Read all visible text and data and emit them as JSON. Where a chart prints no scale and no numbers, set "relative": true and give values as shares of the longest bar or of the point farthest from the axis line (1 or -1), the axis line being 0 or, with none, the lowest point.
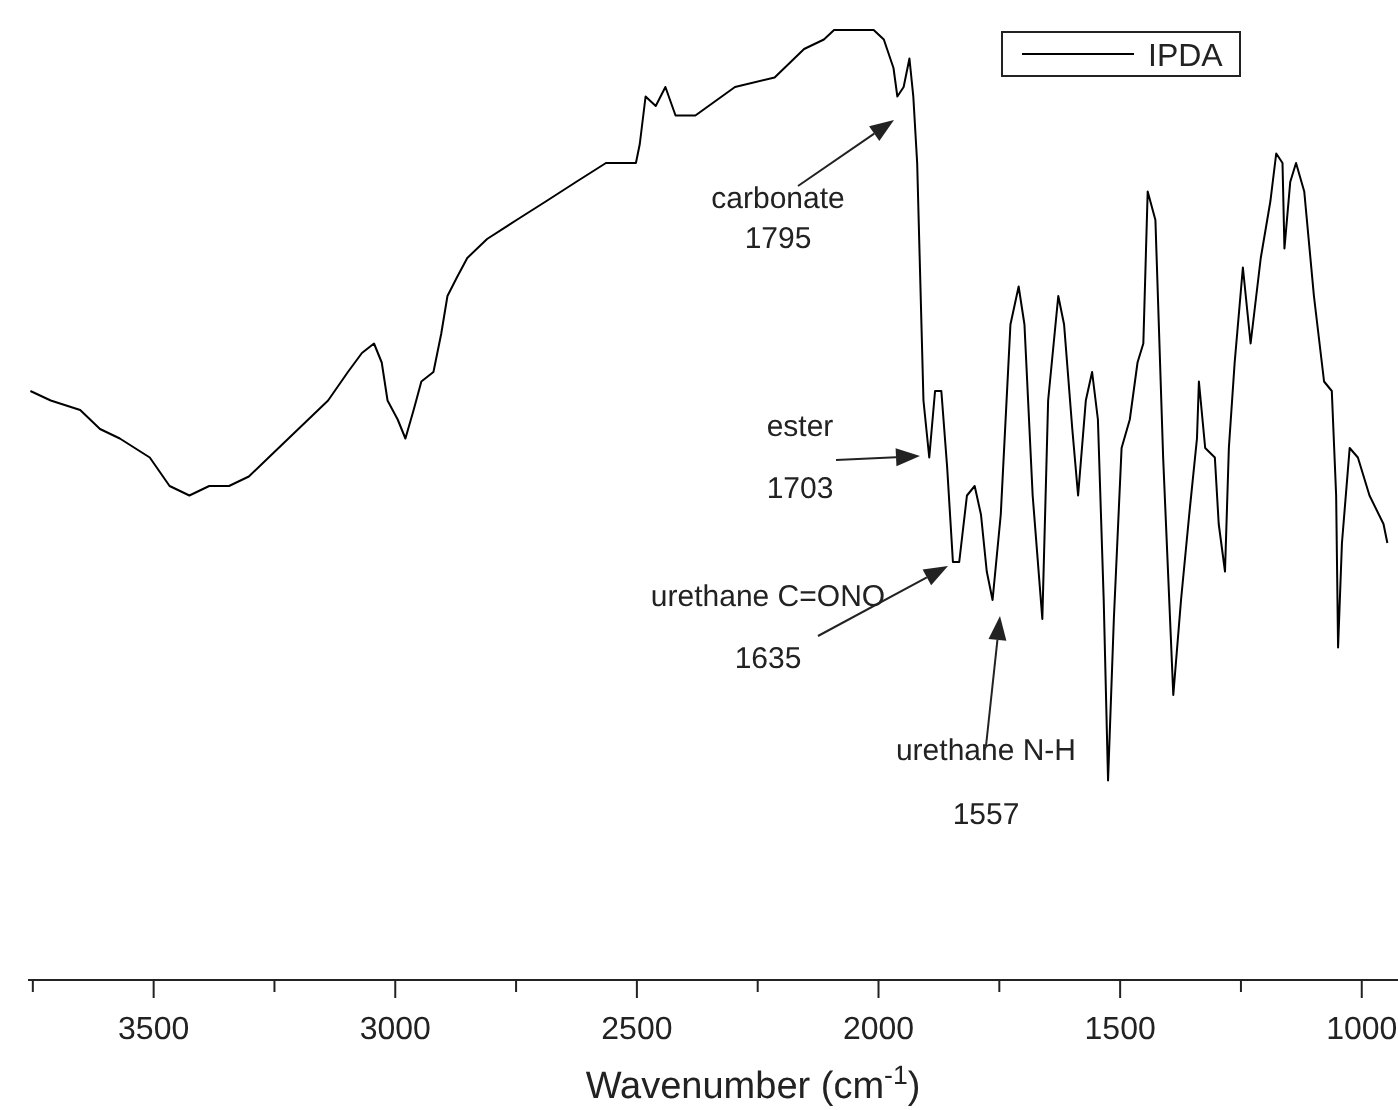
{
  "chart_data": {
    "type": "line",
    "relative": true,
    "xlabel": "Wavenumber (cm$^{-1}$)",
    "xlim": [
      3760,
      925
    ],
    "xticks": [
      {
        "value": 3750,
        "label": null
      },
      3500,
      {
        "value": 3250,
        "label": null
      },
      3000,
      {
        "value": 2750,
        "label": null
      },
      2500,
      {
        "value": 2250,
        "label": null
      },
      2000,
      {
        "value": 1750,
        "label": null
      },
      1500,
      {
        "value": 1250,
        "label": null
      },
      1000
    ],
    "legend": "top right",
    "grid": false,
    "x": [
      3755,
      3713,
      3652,
      3611,
      3570,
      3508,
      3467,
      3426,
      3385,
      3344,
      3303,
      3262,
      3221,
      3180,
      3139,
      3098,
      3069,
      3044,
      3028,
      3016,
      2995,
      2979,
      2962,
      2946,
      2921,
      2905,
      2892,
      2872,
      2851,
      2810,
      2749,
      2687,
      2626,
      2564,
      2502,
      2494,
      2482,
      2461,
      2441,
      2420,
      2379,
      2297,
      2215,
      2154,
      2113,
      2092,
      2051,
      2010,
      1989,
      1969,
      1961,
      1948,
      1940,
      1936,
      1928,
      1920,
      1907,
      1895,
      1883,
      1870,
      1858,
      1846,
      1833,
      1817,
      1801,
      1788,
      1776,
      1764,
      1747,
      1727,
      1710,
      1698,
      1681,
      1661,
      1649,
      1628,
      1616,
      1599,
      1587,
      1571,
      1558,
      1546,
      1534,
      1525,
      1513,
      1497,
      1480,
      1464,
      1452,
      1443,
      1427,
      1411,
      1390,
      1374,
      1357,
      1341,
      1337,
      1324,
      1304,
      1296,
      1283,
      1275,
      1263,
      1246,
      1230,
      1209,
      1189,
      1177,
      1164,
      1160,
      1148,
      1136,
      1119,
      1099,
      1078,
      1062,
      1053,
      1049,
      1041,
      1025,
      1008,
      984,
      955,
      947
    ],
    "series": [
      {
        "name": "IPDA",
        "color": "#000000",
        "values": [
          0.62,
          0.61,
          0.6,
          0.58,
          0.57,
          0.55,
          0.52,
          0.51,
          0.52,
          0.52,
          0.53,
          0.55,
          0.57,
          0.59,
          0.61,
          0.64,
          0.66,
          0.67,
          0.65,
          0.61,
          0.59,
          0.57,
          0.6,
          0.63,
          0.64,
          0.68,
          0.72,
          0.74,
          0.76,
          0.78,
          0.8,
          0.82,
          0.84,
          0.86,
          0.86,
          0.88,
          0.93,
          0.92,
          0.94,
          0.91,
          0.91,
          0.94,
          0.95,
          0.98,
          0.99,
          1.0,
          1.0,
          1.0,
          0.99,
          0.96,
          0.93,
          0.94,
          0.96,
          0.97,
          0.93,
          0.86,
          0.61,
          0.55,
          0.62,
          0.62,
          0.54,
          0.44,
          0.44,
          0.51,
          0.52,
          0.49,
          0.43,
          0.4,
          0.49,
          0.69,
          0.73,
          0.69,
          0.51,
          0.38,
          0.61,
          0.72,
          0.69,
          0.58,
          0.51,
          0.61,
          0.64,
          0.59,
          0.4,
          0.21,
          0.38,
          0.56,
          0.59,
          0.65,
          0.67,
          0.83,
          0.8,
          0.55,
          0.3,
          0.4,
          0.49,
          0.57,
          0.63,
          0.56,
          0.55,
          0.48,
          0.43,
          0.56,
          0.65,
          0.75,
          0.67,
          0.76,
          0.82,
          0.87,
          0.86,
          0.77,
          0.84,
          0.86,
          0.83,
          0.72,
          0.63,
          0.62,
          0.51,
          0.35,
          0.46,
          0.56,
          0.55,
          0.51,
          0.48,
          0.46
        ]
      }
    ],
    "annotations": [
      "carbonate 1795",
      "ester 1703",
      "urethane C=ONO 1635",
      "urethane N-H 1557"
    ]
  }
}
